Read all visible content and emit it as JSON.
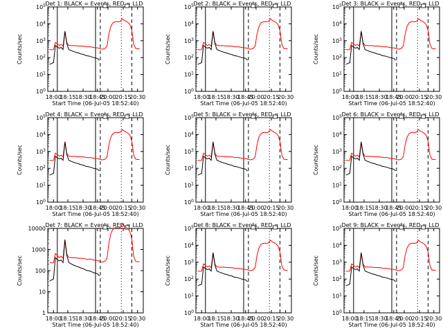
{
  "chart_data": [
    {
      "type": "line",
      "title": "Det 1: BLACK = Events, RED = LLD",
      "ylabel": "Counts/sec",
      "xlabel": "Start Time (06-Jul-05 18:52:40)",
      "yscale": "log",
      "ylim": [
        1,
        100000
      ],
      "ytick_labels": [
        "10^0",
        "10^1",
        "10^2",
        "10^3",
        "10^4",
        "10^5"
      ],
      "xtick_labels": [
        "18:00",
        "18:15",
        "18:30",
        "18:45",
        "20:00",
        "20:15",
        "20:30"
      ],
      "series": [
        {
          "name": "Events",
          "color": "#000000"
        },
        {
          "name": "LLD",
          "color": "#ff0000"
        }
      ]
    },
    {
      "type": "line",
      "title": "Det 2: BLACK = Events, RED = LLD",
      "ylabel": "Counts/sec",
      "xlabel": "Start Time (06-Jul-05 18:52:40)",
      "yscale": "log",
      "ylim": [
        1,
        100000
      ],
      "ytick_labels": [
        "10^0",
        "10^1",
        "10^2",
        "10^3",
        "10^4",
        "10^5"
      ],
      "xtick_labels": [
        "18:00",
        "18:15",
        "18:30",
        "18:45",
        "20:00",
        "20:15",
        "20:30"
      ],
      "series": [
        {
          "name": "Events",
          "color": "#000000"
        },
        {
          "name": "LLD",
          "color": "#ff0000"
        }
      ]
    },
    {
      "type": "line",
      "title": "Det 3: BLACK = Events, RED = LLD",
      "ylabel": "Counts/sec",
      "xlabel": "Start Time (06-Jul-05 18:52:40)",
      "yscale": "log",
      "ylim": [
        1,
        100000
      ],
      "ytick_labels": [
        "10^0",
        "10^1",
        "10^2",
        "10^3",
        "10^4",
        "10^5"
      ],
      "xtick_labels": [
        "18:00",
        "18:15",
        "18:30",
        "18:45",
        "20:00",
        "20:15",
        "20:30"
      ],
      "series": [
        {
          "name": "Events",
          "color": "#000000"
        },
        {
          "name": "LLD",
          "color": "#ff0000"
        }
      ]
    },
    {
      "type": "line",
      "title": "Det 4: BLACK = Events, RED = LLD",
      "ylabel": "Counts/sec",
      "xlabel": "Start Time (06-Jul-05 18:52:40)",
      "yscale": "log",
      "ylim": [
        1,
        100000
      ],
      "ytick_labels": [
        "10^0",
        "10^1",
        "10^2",
        "10^3",
        "10^4",
        "10^5"
      ],
      "xtick_labels": [
        "18:00",
        "18:15",
        "18:30",
        "18:45",
        "20:00",
        "20:15",
        "20:30"
      ],
      "series": [
        {
          "name": "Events",
          "color": "#000000"
        },
        {
          "name": "LLD",
          "color": "#ff0000"
        }
      ]
    },
    {
      "type": "line",
      "title": "Det 5: BLACK = Events, RED = LLD",
      "ylabel": "Counts/sec",
      "xlabel": "Start Time (06-Jul-05 18:52:40)",
      "yscale": "log",
      "ylim": [
        1,
        100000
      ],
      "ytick_labels": [
        "10^0",
        "10^1",
        "10^2",
        "10^3",
        "10^4",
        "10^5"
      ],
      "xtick_labels": [
        "18:00",
        "18:15",
        "18:30",
        "18:45",
        "20:00",
        "20:15",
        "20:30"
      ],
      "series": [
        {
          "name": "Events",
          "color": "#000000"
        },
        {
          "name": "LLD",
          "color": "#ff0000"
        }
      ]
    },
    {
      "type": "line",
      "title": "Det 6: BLACK = Events, RED = LLD",
      "ylabel": "Counts/sec",
      "xlabel": "Start Time (06-Jul-05 18:52:40)",
      "yscale": "log",
      "ylim": [
        1,
        100000
      ],
      "ytick_labels": [
        "10^0",
        "10^1",
        "10^2",
        "10^3",
        "10^4",
        "10^5"
      ],
      "xtick_labels": [
        "18:00",
        "18:15",
        "18:30",
        "18:45",
        "20:00",
        "20:15",
        "20:30"
      ],
      "series": [
        {
          "name": "Events",
          "color": "#000000"
        },
        {
          "name": "LLD",
          "color": "#ff0000"
        }
      ]
    },
    {
      "type": "line",
      "title": "Det 7: BLACK = Events, RED = LLD",
      "ylabel": "Counts/sec",
      "xlabel": "Start Time (06-Jul-05 18:52:40)",
      "yscale": "log",
      "ylim": [
        1,
        10000
      ],
      "ytick_labels": [
        "1",
        "10",
        "100",
        "1000",
        "10000"
      ],
      "xtick_labels": [
        "18:00",
        "18:15",
        "18:30",
        "18:45",
        "20:00",
        "20:15",
        "20:30"
      ],
      "series": [
        {
          "name": "Events",
          "color": "#000000"
        },
        {
          "name": "LLD",
          "color": "#ff0000"
        }
      ]
    },
    {
      "type": "line",
      "title": "Det 8: BLACK = Events, RED = LLD",
      "ylabel": "Counts/sec",
      "xlabel": "Start Time (06-Jul-05 18:52:40)",
      "yscale": "log",
      "ylim": [
        1,
        100000
      ],
      "ytick_labels": [
        "10^0",
        "10^1",
        "10^2",
        "10^3",
        "10^4",
        "10^5"
      ],
      "xtick_labels": [
        "18:00",
        "18:15",
        "18:30",
        "18:45",
        "20:00",
        "20:15",
        "20:30"
      ],
      "series": [
        {
          "name": "Events",
          "color": "#000000"
        },
        {
          "name": "LLD",
          "color": "#ff0000"
        }
      ]
    },
    {
      "type": "line",
      "title": "Det 9: BLACK = Events, RED = LLD",
      "ylabel": "Counts/sec",
      "xlabel": "Start Time (06-Jul-05 18:52:40)",
      "yscale": "log",
      "ylim": [
        1,
        100000
      ],
      "ytick_labels": [
        "10^0",
        "10^1",
        "10^2",
        "10^3",
        "10^4",
        "10^5"
      ],
      "xtick_labels": [
        "18:00",
        "18:15",
        "18:30",
        "18:45",
        "20:00",
        "20:15",
        "20:30"
      ],
      "series": [
        {
          "name": "Events",
          "color": "#000000"
        },
        {
          "name": "LLD",
          "color": "#ff0000"
        }
      ]
    }
  ],
  "events_x": [
    0.02,
    0.04,
    0.06,
    0.08,
    0.1,
    0.12,
    0.14,
    0.16,
    0.18,
    0.2,
    0.22,
    0.24,
    0.26,
    0.28,
    0.3,
    0.32,
    0.34,
    0.36,
    0.38,
    0.4,
    0.42,
    0.44,
    0.46,
    0.48,
    0.5,
    0.52,
    0.54
  ],
  "events_y": [
    40,
    45,
    50,
    520,
    420,
    360,
    400,
    300,
    3500,
    650,
    300,
    270,
    240,
    220,
    200,
    190,
    170,
    160,
    150,
    130,
    125,
    120,
    110,
    100,
    95,
    90,
    70
  ],
  "lld_x": [
    0.02,
    0.04,
    0.06,
    0.08,
    0.1,
    0.12,
    0.14,
    0.16,
    0.18,
    0.2,
    0.22,
    0.24,
    0.26,
    0.28,
    0.3,
    0.32,
    0.34,
    0.36,
    0.38,
    0.4,
    0.42,
    0.44,
    0.46,
    0.48,
    0.5,
    0.52,
    0.54,
    0.56,
    0.58,
    0.6,
    0.62,
    0.64,
    0.66,
    0.68,
    0.7,
    0.72,
    0.74,
    0.76,
    0.78,
    0.8,
    0.82,
    0.84,
    0.86,
    0.88,
    0.9,
    0.92,
    0.94,
    0.96
  ],
  "lld_y": [
    300,
    290,
    295,
    800,
    650,
    520,
    600,
    480,
    3800,
    750,
    520,
    520,
    500,
    520,
    500,
    480,
    490,
    470,
    480,
    440,
    430,
    440,
    420,
    400,
    380,
    380,
    350,
    320,
    320,
    350,
    480,
    2500,
    7000,
    11000,
    13000,
    13500,
    13000,
    14000,
    20000,
    16000,
    14000,
    12000,
    9000,
    4000,
    600,
    350,
    330,
    330
  ],
  "cursor": {
    "solid_a": 0.1,
    "solid_b": 0.5,
    "dash_a": 0.55,
    "dash_b": 0.88,
    "dot_a": 0.77,
    "flag_a": 0.6,
    "flag_b": 0.83
  }
}
